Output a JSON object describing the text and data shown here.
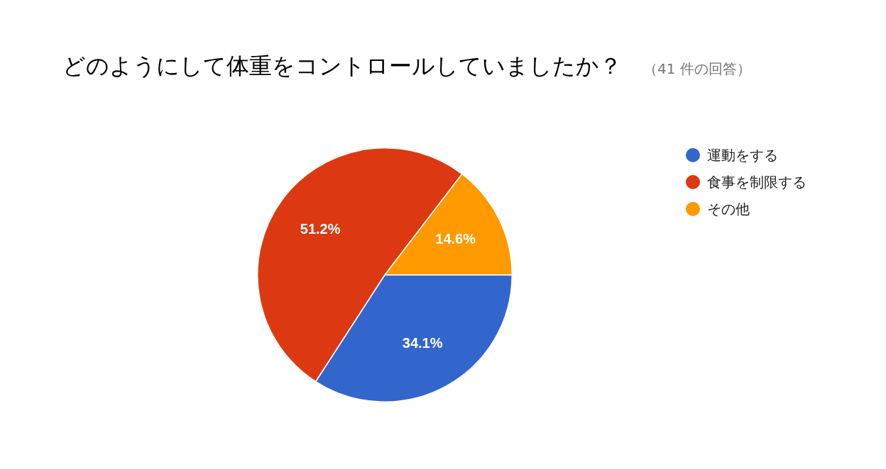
{
  "chart_data": {
    "type": "pie",
    "title": "どのようにして体重をコントロールしていましたか？",
    "subtitle": "（41 件の回答）",
    "categories": [
      "運動をする",
      "食事を制限する",
      "その他"
    ],
    "values": [
      34.1,
      51.2,
      14.6
    ],
    "colors": [
      "#3366cc",
      "#dc3912",
      "#ff9900"
    ],
    "value_labels": [
      "34.1%",
      "51.2%",
      "14.6%"
    ],
    "legend": "top right"
  }
}
